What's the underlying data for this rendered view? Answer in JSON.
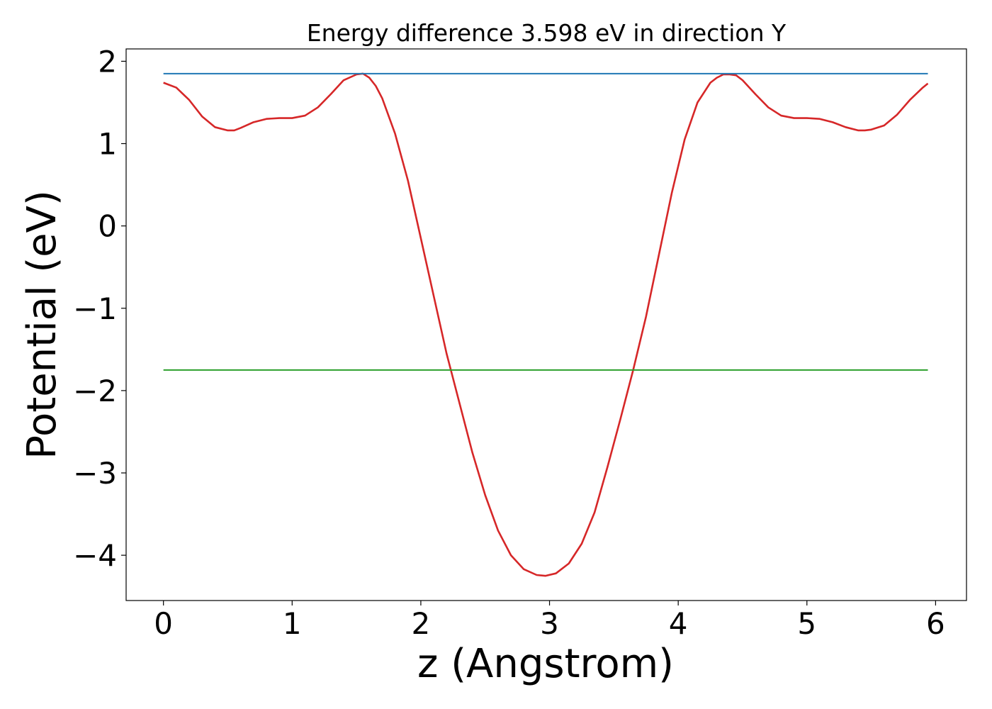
{
  "chart_data": {
    "type": "line",
    "title": "Energy difference 3.598 eV in direction Y",
    "xlabel": "z (Angstrom)",
    "ylabel": "Potential (eV)",
    "xlim": [
      -0.29,
      6.24
    ],
    "ylim": [
      -4.55,
      2.15
    ],
    "xticks": [
      0,
      1,
      2,
      3,
      4,
      5,
      6
    ],
    "xtick_labels": [
      "0",
      "1",
      "2",
      "3",
      "4",
      "5",
      "6"
    ],
    "yticks": [
      2,
      1,
      0,
      -1,
      -2,
      -3,
      -4
    ],
    "ytick_labels": [
      "2",
      "1",
      "0",
      "−1",
      "−2",
      "−3",
      "−4"
    ],
    "grid": false,
    "legend": "none",
    "series": [
      {
        "color": "#d62728",
        "x": [
          0,
          0.1,
          0.2,
          0.3,
          0.4,
          0.5,
          0.55,
          0.6,
          0.7,
          0.8,
          0.9,
          1.0,
          1.1,
          1.2,
          1.3,
          1.4,
          1.5,
          1.55,
          1.6,
          1.65,
          1.7,
          1.8,
          1.9,
          2.0,
          2.1,
          2.2,
          2.3,
          2.4,
          2.5,
          2.6,
          2.7,
          2.8,
          2.9,
          2.97,
          3.05,
          3.15,
          3.25,
          3.35,
          3.45,
          3.55,
          3.65,
          3.75,
          3.85,
          3.95,
          4.05,
          4.15,
          4.25,
          4.3,
          4.35,
          4.4,
          4.45,
          4.5,
          4.6,
          4.7,
          4.8,
          4.9,
          5.0,
          5.1,
          5.2,
          5.3,
          5.4,
          5.45,
          5.5,
          5.6,
          5.7,
          5.8,
          5.9,
          5.94
        ],
        "y": [
          1.74,
          1.68,
          1.53,
          1.33,
          1.2,
          1.16,
          1.16,
          1.19,
          1.26,
          1.3,
          1.31,
          1.31,
          1.34,
          1.44,
          1.6,
          1.77,
          1.84,
          1.85,
          1.8,
          1.7,
          1.55,
          1.12,
          0.55,
          -0.15,
          -0.85,
          -1.55,
          -2.15,
          -2.75,
          -3.27,
          -3.7,
          -4.0,
          -4.17,
          -4.24,
          -4.25,
          -4.22,
          -4.1,
          -3.86,
          -3.48,
          -2.93,
          -2.35,
          -1.75,
          -1.1,
          -0.35,
          0.4,
          1.05,
          1.5,
          1.74,
          1.8,
          1.84,
          1.84,
          1.83,
          1.77,
          1.6,
          1.44,
          1.34,
          1.31,
          1.31,
          1.3,
          1.26,
          1.2,
          1.16,
          1.16,
          1.17,
          1.22,
          1.35,
          1.53,
          1.68,
          1.73
        ]
      },
      {
        "color": "#1f77b4",
        "x": [
          0,
          5.94
        ],
        "y": [
          1.85,
          1.85
        ]
      },
      {
        "color": "#2ca02c",
        "x": [
          0,
          5.94
        ],
        "y": [
          -1.75,
          -1.75
        ]
      }
    ]
  }
}
